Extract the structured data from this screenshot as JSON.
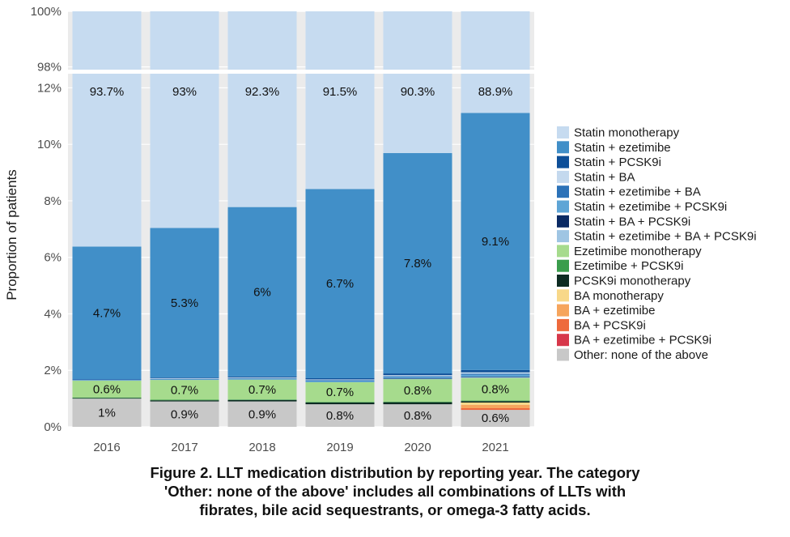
{
  "chart_data": {
    "type": "bar",
    "stacked": true,
    "ylabel": "Proportion of patients",
    "xlabel": "",
    "categories": [
      "2016",
      "2017",
      "2018",
      "2019",
      "2020",
      "2021"
    ],
    "lower_panel": {
      "ylim": [
        0,
        12.5
      ],
      "yticks": [
        0,
        2,
        4,
        6,
        8,
        10,
        12
      ],
      "yticklabels": [
        "0%",
        "2%",
        "4%",
        "6%",
        "8%",
        "10%",
        "12%"
      ]
    },
    "upper_panel": {
      "ylim": [
        97.9,
        100
      ],
      "yticks": [
        98,
        100
      ],
      "yticklabels": [
        "98%",
        "100%"
      ]
    },
    "legend": {
      "position": "right"
    },
    "series": [
      {
        "name": "Other: none of the above",
        "color": "#c8c8c8",
        "values": [
          1.0,
          0.9,
          0.9,
          0.8,
          0.8,
          0.6
        ]
      },
      {
        "name": "BA + ezetimibe + PCSK9i",
        "color": "#d7374a",
        "values": [
          0,
          0,
          0,
          0,
          0,
          0
        ]
      },
      {
        "name": "BA + PCSK9i",
        "color": "#ee6a3c",
        "values": [
          0,
          0,
          0,
          0,
          0,
          0.06
        ]
      },
      {
        "name": "BA + ezetimibe",
        "color": "#f6a55d",
        "values": [
          0,
          0,
          0,
          0,
          0,
          0.12
        ]
      },
      {
        "name": "BA monotherapy",
        "color": "#f8d889",
        "values": [
          0,
          0,
          0,
          0,
          0,
          0.08
        ]
      },
      {
        "name": "PCSK9i monotherapy",
        "color": "#0d2b22",
        "values": [
          0.02,
          0.04,
          0.05,
          0.06,
          0.07,
          0.05
        ]
      },
      {
        "name": "Ezetimibe + PCSK9i",
        "color": "#3a9d4c",
        "values": [
          0.02,
          0.02,
          0.02,
          0.02,
          0.02,
          0.02
        ]
      },
      {
        "name": "Ezetimibe monotherapy",
        "color": "#a6db8d",
        "values": [
          0.6,
          0.7,
          0.7,
          0.7,
          0.8,
          0.8
        ]
      },
      {
        "name": "Statin + ezetimibe + BA + PCSK9i",
        "color": "#9fc5e3",
        "values": [
          0,
          0,
          0,
          0,
          0.01,
          0.02
        ]
      },
      {
        "name": "Statin + BA + PCSK9i",
        "color": "#0a2a64",
        "values": [
          0,
          0,
          0,
          0,
          0.01,
          0.02
        ]
      },
      {
        "name": "Statin + ezetimibe + PCSK9i",
        "color": "#5ea5d6",
        "values": [
          0.01,
          0.02,
          0.03,
          0.04,
          0.05,
          0.07
        ]
      },
      {
        "name": "Statin + ezetimibe + BA",
        "color": "#2c72b8",
        "values": [
          0.01,
          0.02,
          0.02,
          0.03,
          0.03,
          0.04
        ]
      },
      {
        "name": "Statin + BA",
        "color": "#c4d9ee",
        "values": [
          0.01,
          0.02,
          0.03,
          0.03,
          0.04,
          0.05
        ]
      },
      {
        "name": "Statin + PCSK9i",
        "color": "#0e4f98",
        "values": [
          0.01,
          0.02,
          0.03,
          0.04,
          0.06,
          0.08
        ]
      },
      {
        "name": "Statin + ezetimibe",
        "color": "#418fc8",
        "values": [
          4.7,
          5.3,
          6.0,
          6.7,
          7.8,
          9.1
        ]
      },
      {
        "name": "Statin monotherapy",
        "color": "#c6dbf0",
        "values": [
          93.7,
          93.0,
          92.3,
          91.5,
          90.3,
          88.9
        ]
      }
    ],
    "legend_order": [
      "Statin monotherapy",
      "Statin + ezetimibe",
      "Statin + PCSK9i",
      "Statin + BA",
      "Statin + ezetimibe + BA",
      "Statin + ezetimibe + PCSK9i",
      "Statin + BA + PCSK9i",
      "Statin + ezetimibe + BA + PCSK9i",
      "Ezetimibe monotherapy",
      "Ezetimibe + PCSK9i",
      "PCSK9i monotherapy",
      "BA monotherapy",
      "BA + ezetimibe",
      "BA + PCSK9i",
      "BA + ezetimibe + PCSK9i",
      "Other: none of the above"
    ],
    "data_labels": {
      "Statin monotherapy": [
        "93.7%",
        "93%",
        "92.3%",
        "91.5%",
        "90.3%",
        "88.9%"
      ],
      "Statin + ezetimibe": [
        "4.7%",
        "5.3%",
        "6%",
        "6.7%",
        "7.8%",
        "9.1%"
      ],
      "Ezetimibe monotherapy": [
        "0.6%",
        "0.7%",
        "0.7%",
        "0.7%",
        "0.8%",
        "0.8%"
      ],
      "Other: none of the above": [
        "1%",
        "0.9%",
        "0.9%",
        "0.8%",
        "0.8%",
        "0.6%"
      ]
    }
  },
  "caption": {
    "line1": "Figure 2. LLT medication distribution by reporting year. The category",
    "line2": "'Other: none of the above' includes all combinations of LLTs with",
    "line3": "fibrates, bile acid sequestrants, or omega-3 fatty acids."
  }
}
